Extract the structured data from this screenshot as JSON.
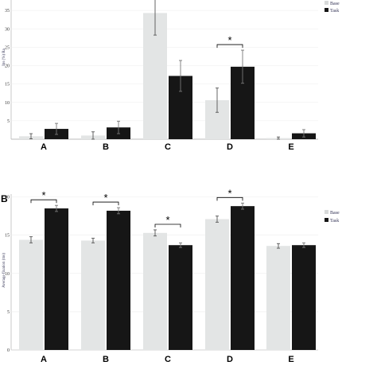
{
  "chart_data": [
    {
      "panel": "",
      "type": "bar",
      "ylabel": "Ins (%) Ra",
      "ylim": [
        0,
        40
      ],
      "yticks": [
        "5",
        "10",
        "15",
        "20",
        "25",
        "30",
        "35"
      ],
      "grid": true,
      "legend_position": "top-right",
      "categories": [
        "A",
        "B",
        "C",
        "D",
        "E"
      ],
      "series": [
        {
          "name": "Base",
          "color": "#e3e5e5",
          "values": [
            0.8,
            1.0,
            34.3,
            10.6,
            0.3
          ],
          "errors": [
            0.7,
            1.0,
            6.0,
            3.3,
            0.3
          ]
        },
        {
          "name": "Task",
          "color": "#161616",
          "values": [
            2.8,
            3.2,
            17.2,
            19.7,
            1.6
          ],
          "errors": [
            1.5,
            1.7,
            4.2,
            4.5,
            1.0
          ]
        }
      ],
      "significance": [
        {
          "category": "D",
          "label": "*"
        }
      ]
    },
    {
      "panel": "B",
      "type": "bar",
      "ylabel": "Average fixation (ms)",
      "ylim": [
        0,
        21
      ],
      "yticks": [
        "0",
        "5",
        "10",
        "15",
        "20"
      ],
      "grid": true,
      "legend_position": "right",
      "categories": [
        "A",
        "B",
        "C",
        "D",
        "E"
      ],
      "series": [
        {
          "name": "Base",
          "color": "#e3e5e5",
          "values": [
            14.4,
            14.3,
            15.3,
            17.1,
            13.6
          ],
          "errors": [
            0.4,
            0.3,
            0.4,
            0.4,
            0.3
          ]
        },
        {
          "name": "Task",
          "color": "#161616",
          "values": [
            18.5,
            18.2,
            13.7,
            18.8,
            13.7
          ],
          "errors": [
            0.4,
            0.4,
            0.3,
            0.4,
            0.3
          ]
        }
      ],
      "significance": [
        {
          "category": "A",
          "label": "*"
        },
        {
          "category": "B",
          "label": "*"
        },
        {
          "category": "C",
          "label": "*"
        },
        {
          "category": "D",
          "label": "*"
        }
      ]
    }
  ]
}
